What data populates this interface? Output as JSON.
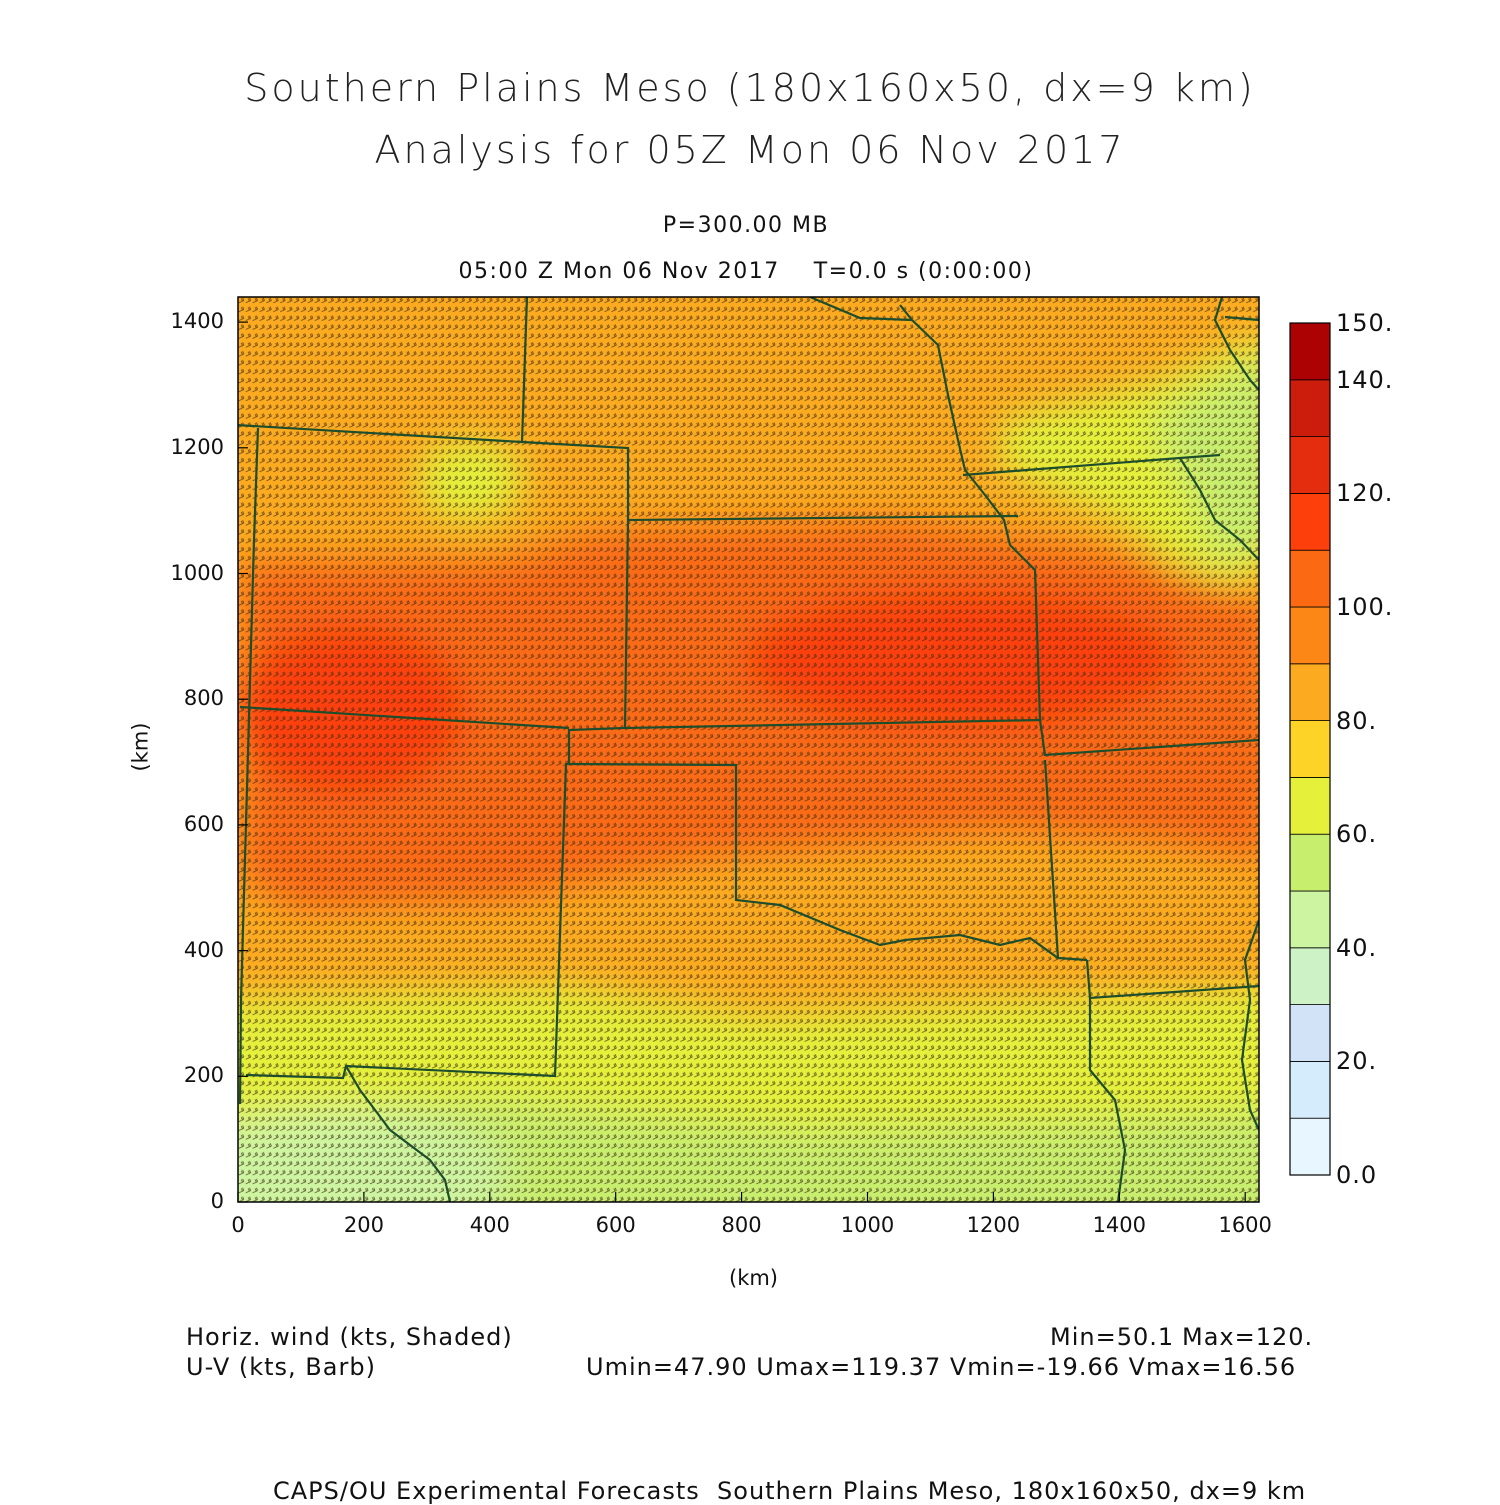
{
  "titles": {
    "line1": "Southern Plains Meso (180x160x50, dx=9 km)",
    "line2": "Analysis for 05Z Mon 06 Nov 2017",
    "level": "P=300.00 MB",
    "valid": "05:00 Z Mon 06 Nov 2017    T=0.0 s (0:00:00)"
  },
  "axes": {
    "xlabel": "(km)",
    "ylabel": "(km)",
    "xticks": [
      "0",
      "200",
      "400",
      "600",
      "800",
      "1000",
      "1200",
      "1400",
      "1600"
    ],
    "yticks": [
      "0",
      "200",
      "400",
      "600",
      "800",
      "1000",
      "1200",
      "1400"
    ],
    "xlim": [
      0,
      1620
    ],
    "ylim": [
      0,
      1440
    ]
  },
  "colorbar": {
    "labels": [
      "0.0",
      "20.",
      "40.",
      "60.",
      "80.",
      "100.",
      "120.",
      "140.",
      "150."
    ],
    "range": [
      0,
      150
    ],
    "colors": [
      "#e8f6ff",
      "#d4ecfc",
      "#d2e3f8",
      "#cdf2c5",
      "#cdf4a0",
      "#c8ee6e",
      "#e4f03a",
      "#fed327",
      "#fcab21",
      "#fc8717",
      "#fb6a12",
      "#fd3f0c",
      "#e42d0e",
      "#cc1c0b",
      "#ac0204"
    ]
  },
  "field": {
    "name": "Horiz. wind (kts, Shaded)",
    "vector": "U-V (kts, Barb)",
    "min": "Min=50.1",
    "max": "Max=120.",
    "stats": "Umin=47.90 Umax=119.37 Vmin=-19.66 Vmax=16.56"
  },
  "footer": "CAPS/OU Experimental Forecasts  Southern Plains Meso, 180x160x50, dx=9 km"
}
